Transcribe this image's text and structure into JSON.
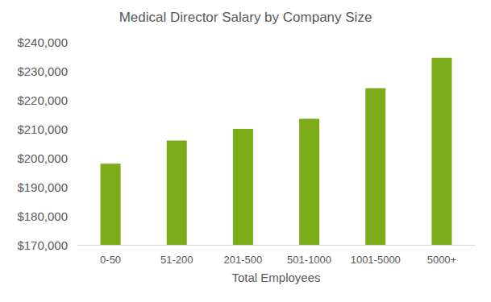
{
  "chart_data": {
    "type": "bar",
    "title": "Medical Director Salary by Company Size",
    "x_label": "Total Employees",
    "categories": [
      "0-50",
      "51-200",
      "201-500",
      "501-1000",
      "1001-5000",
      "5000+"
    ],
    "values": [
      198000,
      206000,
      210000,
      213500,
      224000,
      234500
    ],
    "color": "#7cac1a",
    "ylim": [
      170000,
      240000
    ],
    "yticks": [
      {
        "value": 170000,
        "label": "$170,000"
      },
      {
        "value": 180000,
        "label": "$180,000"
      },
      {
        "value": 190000,
        "label": "$190,000"
      },
      {
        "value": 200000,
        "label": "$200,000"
      },
      {
        "value": 210000,
        "label": "$210,000"
      },
      {
        "value": 220000,
        "label": "$220,000"
      },
      {
        "value": 230000,
        "label": "$230,000"
      },
      {
        "value": 240000,
        "label": "$240,000"
      }
    ],
    "grid": false
  }
}
